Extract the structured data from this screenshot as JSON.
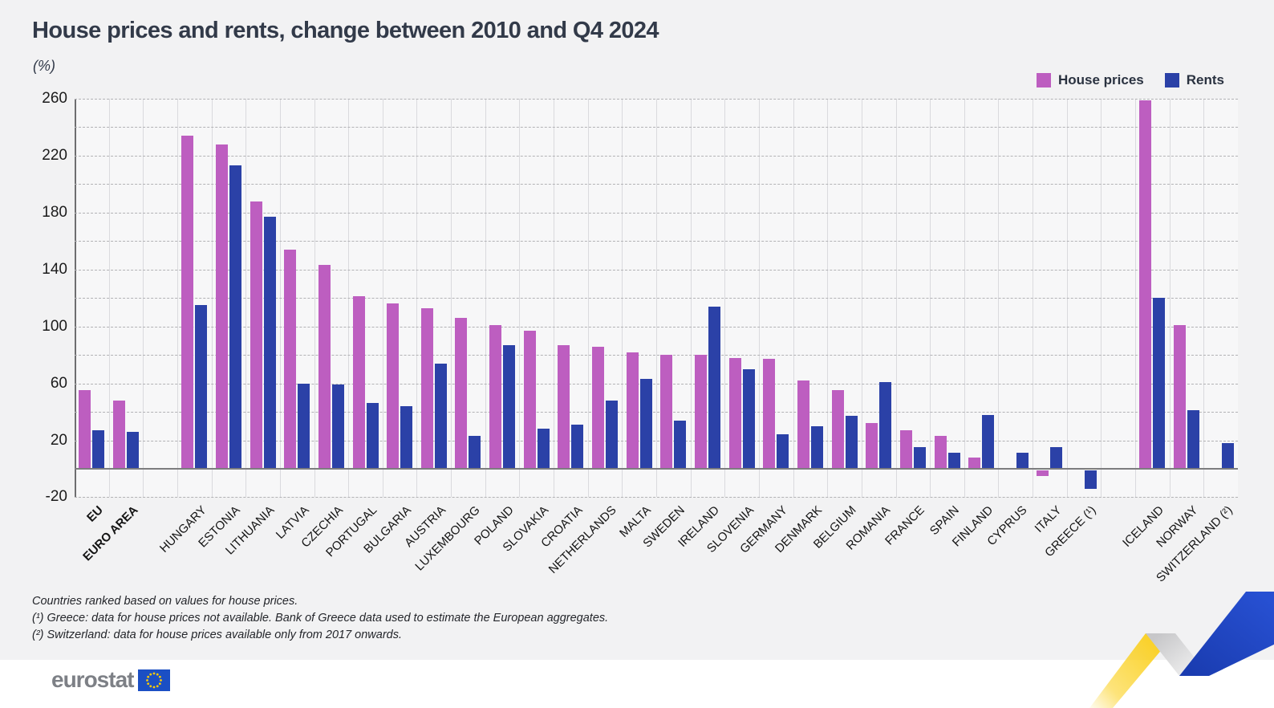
{
  "page": {
    "title": "House prices and rents, change between 2010 and Q4 2024",
    "unit_label": "(%)"
  },
  "legend": {
    "items": [
      {
        "label": "House prices",
        "color": "#bd5ec0"
      },
      {
        "label": "Rents",
        "color": "#2b41a7"
      }
    ]
  },
  "chart_data": {
    "type": "bar",
    "title": "House prices and rents, change between 2010 and Q4 2024",
    "ylabel": "(%)",
    "ylim": [
      -20,
      260
    ],
    "ytick_labels": [
      260,
      220,
      180,
      140,
      100,
      60,
      20,
      -20
    ],
    "grid_step": 20,
    "grid": "dashed horizontal lines every 20, light vertical line per category column",
    "legend_position": "top-right",
    "categories": [
      "EU",
      "EURO AREA",
      "",
      "HUNGARY",
      "ESTONIA",
      "LITHUANIA",
      "LATVIA",
      "CZECHIA",
      "PORTUGAL",
      "BULGARIA",
      "AUSTRIA",
      "LUXEMBOURG",
      "POLAND",
      "SLOVAKIA",
      "CROATIA",
      "NETHERLANDS",
      "MALTA",
      "SWEDEN",
      "IRELAND",
      "SLOVENIA",
      "GERMANY",
      "DENMARK",
      "BELGIUM",
      "ROMANIA",
      "FRANCE",
      "SPAIN",
      "FINLAND",
      "CYPRUS",
      "ITALY",
      "GREECE (¹)",
      "",
      "ICELAND",
      "NORWAY",
      "SWITZERLAND (²)"
    ],
    "bold_categories": [
      "EU",
      "EURO AREA"
    ],
    "series": [
      {
        "name": "House prices",
        "color": "#bd5ec0",
        "values": [
          55,
          48,
          null,
          234,
          228,
          188,
          154,
          143,
          121,
          116,
          113,
          106,
          101,
          97,
          87,
          86,
          82,
          80,
          80,
          78,
          77,
          62,
          55,
          32,
          27,
          23,
          8,
          0,
          -4,
          null,
          null,
          259,
          101,
          null
        ]
      },
      {
        "name": "Rents",
        "color": "#2b41a7",
        "values": [
          27,
          26,
          null,
          115,
          213,
          177,
          60,
          59,
          46,
          44,
          74,
          23,
          87,
          28,
          31,
          48,
          63,
          34,
          114,
          70,
          24,
          30,
          37,
          61,
          15,
          11,
          38,
          11,
          15,
          -13,
          null,
          120,
          41,
          18
        ]
      }
    ]
  },
  "footnotes": {
    "line1": "Countries ranked based on values for house prices.",
    "line2": "(¹) Greece: data for house prices not available. Bank of Greece data used to estimate the European aggregates.",
    "line3": "(²) Switzerland: data for house prices available only from 2017 onwards."
  },
  "footer": {
    "brand": "eurostat"
  }
}
